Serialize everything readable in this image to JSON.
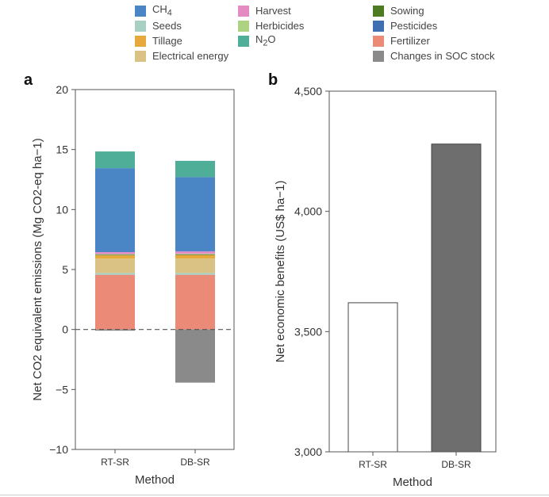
{
  "legend": [
    {
      "label": "CH4",
      "html": "CH<sub>4</sub>",
      "color": "#4a86c5"
    },
    {
      "label": "Seeds",
      "color": "#a7cfc4"
    },
    {
      "label": "Tillage",
      "color": "#e8a93c"
    },
    {
      "label": "Electrical energy",
      "color": "#d9c283"
    },
    {
      "label": "Harvest",
      "color": "#e48bc4"
    },
    {
      "label": "Herbicides",
      "color": "#acd282"
    },
    {
      "label": "N2O",
      "html": "N<sub>2</sub>O",
      "color": "#4fae98"
    },
    {
      "label": "Sowing",
      "color": "#4e7a22"
    },
    {
      "label": "Pesticides",
      "color": "#3f6fb0"
    },
    {
      "label": "Fertilizer",
      "color": "#eb8a76"
    },
    {
      "label": "Changes in SOC stock",
      "color": "#8a8a8a"
    }
  ],
  "chart_data": [
    {
      "panel": "a",
      "type": "bar",
      "stacked": true,
      "categories": [
        "RT-SR",
        "DB-SR"
      ],
      "xlabel": "Method",
      "ylabel": "Net CO2 equivalent emissions (Mg CO2-eq ha−1)",
      "ylim": [
        -10,
        20
      ],
      "yticks": [
        -10,
        -5,
        0,
        5,
        10,
        15,
        20
      ],
      "ytick_labels": [
        "−10",
        "−5",
        "0",
        "5",
        "10",
        "15",
        "20"
      ],
      "reference_line": 0,
      "series": [
        {
          "name": "Fertilizer",
          "color": "#eb8a76",
          "values": [
            4.56,
            4.56
          ]
        },
        {
          "name": "Seeds",
          "color": "#a7cfc4",
          "values": [
            0.15,
            0.15
          ]
        },
        {
          "name": "Electrical energy",
          "color": "#d9c283",
          "values": [
            1.2,
            1.2
          ]
        },
        {
          "name": "Tillage",
          "color": "#e8a93c",
          "values": [
            0.27,
            0.3
          ]
        },
        {
          "name": "Sowing",
          "color": "#4e7a22",
          "values": [
            0.05,
            0.05
          ]
        },
        {
          "name": "Herbicides",
          "color": "#acd282",
          "values": [
            0.05,
            0.05
          ]
        },
        {
          "name": "Harvest",
          "color": "#e48bc4",
          "values": [
            0.17,
            0.2
          ]
        },
        {
          "name": "CH4",
          "color": "#4a86c5",
          "values": [
            7.0,
            6.2
          ]
        },
        {
          "name": "N2O",
          "color": "#4fae98",
          "values": [
            1.39,
            1.35
          ]
        },
        {
          "name": "Changes in SOC stock",
          "color": "#8a8a8a",
          "values": [
            -0.1,
            -4.43
          ]
        }
      ]
    },
    {
      "panel": "b",
      "type": "bar",
      "categories": [
        "RT-SR",
        "DB-SR"
      ],
      "values": [
        3620,
        4280
      ],
      "colors": [
        "#ffffff",
        "#6e6e6e"
      ],
      "xlabel": "Method",
      "ylabel": "Net economic benefits (US$ ha−1)",
      "ylim": [
        3000,
        4500
      ],
      "yticks": [
        3000,
        3500,
        4000,
        4500
      ],
      "ytick_labels": [
        "3,000",
        "3,500",
        "4,000",
        "4,500"
      ]
    }
  ]
}
